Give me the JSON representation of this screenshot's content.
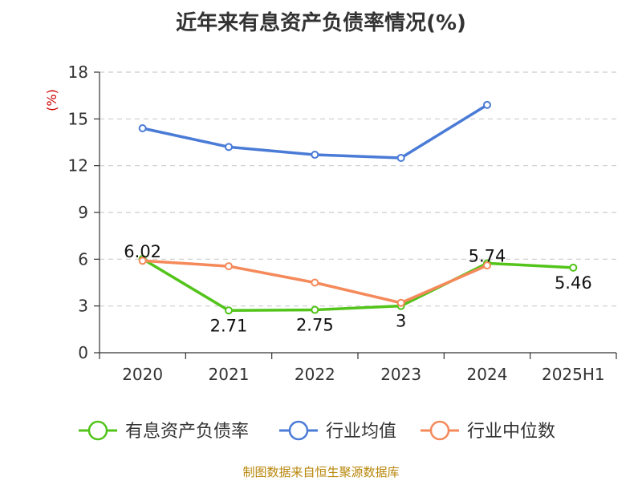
{
  "chart_data": {
    "type": "line",
    "title": "近年来有息资产负债率情况(%)",
    "ylabel": "(%)",
    "xlabel": "",
    "categories": [
      "2020",
      "2021",
      "2022",
      "2023",
      "2024",
      "2025H1"
    ],
    "ylim": [
      0,
      18
    ],
    "yticks": [
      0,
      3,
      6,
      9,
      12,
      15,
      18
    ],
    "grid": true,
    "legend_position": "bottom",
    "series": [
      {
        "name": "有息资产负债率",
        "color": "#52c41a",
        "values": [
          6.02,
          2.71,
          2.75,
          3,
          5.74,
          5.46
        ],
        "labels": [
          "6.02",
          "2.71",
          "2.75",
          "3",
          "5.74",
          "5.46"
        ]
      },
      {
        "name": "行业均值",
        "color": "#4a7bd6",
        "values": [
          14.4,
          13.2,
          12.7,
          12.5,
          15.9,
          null
        ],
        "labels": []
      },
      {
        "name": "行业中位数",
        "color": "#f5895a",
        "values": [
          5.9,
          5.55,
          4.5,
          3.2,
          5.6,
          null
        ],
        "labels": []
      }
    ]
  },
  "source": "制图数据来自恒生聚源数据库",
  "colors": {
    "axis": "#333333",
    "grid": "#cccccc",
    "unit": "#cc0000",
    "source": "#b8860b"
  }
}
